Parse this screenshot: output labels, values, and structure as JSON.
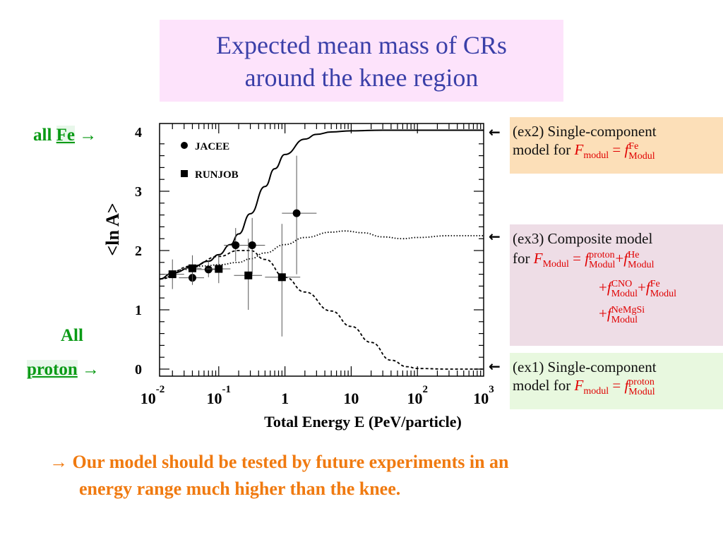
{
  "slide": {
    "title_line1": "Expected mean mass of CRs",
    "title_line2": "around the knee region",
    "label_all_fe_prefix": "all ",
    "label_all_fe_elem": "Fe",
    "label_all_proton_line1": "All",
    "label_all_proton_line2": "proton",
    "arrow_right": "→",
    "arrow_left": "←",
    "conclusion_line1": "→ Our model should be tested by future experiments in an",
    "conclusion_line2": "energy range much higher than the knee.",
    "colors": {
      "title_bg": "#fde3fb",
      "title_text": "#3a3fa8",
      "green": "#0a9a15",
      "orange": "#f07a10",
      "red": "#e00000",
      "ex2_bg": "#fcdfb8",
      "ex3_bg": "#eedde6",
      "ex1_bg": "#e8f8df"
    }
  },
  "ex2": {
    "text1": "(ex2) Single-component",
    "text2": "model for ",
    "F": "F",
    "F_sub": "modul",
    "eq": " = ",
    "f": "f",
    "f_sup": "Fe",
    "f_sub": "Modul"
  },
  "ex3": {
    "text1": "(ex3) Composite model",
    "text2": "for ",
    "F": "F",
    "F_sub": "Modul",
    "eq": " = ",
    "terms": [
      {
        "prefix": "",
        "f": "f",
        "sup": "proton",
        "sub": "Modul"
      },
      {
        "prefix": "+",
        "f": "f",
        "sup": "He",
        "sub": "Modul"
      },
      {
        "prefix": "+",
        "f": "f",
        "sup": "CNO",
        "sub": "Modul"
      },
      {
        "prefix": "+",
        "f": "f",
        "sup": "Fe",
        "sub": "Modul"
      },
      {
        "prefix": "+",
        "f": "f",
        "sup": "NeMgSi",
        "sub": "Modul"
      }
    ]
  },
  "ex1": {
    "text1": "(ex1) Single-component",
    "text2": "model for ",
    "F": "F",
    "F_sub": "modul",
    "eq": " = ",
    "f": "f",
    "f_sup": "proton",
    "f_sub": "Modul"
  },
  "chart_data": {
    "type": "line",
    "title": "",
    "xlabel": "Total Energy E (PeV/particle)",
    "ylabel": "<ln A>",
    "xscale": "log",
    "xlim": [
      0.01,
      1000
    ],
    "ylim": [
      -0.2,
      4.2
    ],
    "x_ticks": [
      {
        "base": "10",
        "exp": "-2",
        "value": 0.01
      },
      {
        "base": "10",
        "exp": "-1",
        "value": 0.1
      },
      {
        "base": "1",
        "exp": "",
        "value": 1
      },
      {
        "base": "10",
        "exp": "",
        "value": 10
      },
      {
        "base": "10",
        "exp": "2",
        "value": 100
      },
      {
        "base": "10",
        "exp": "3",
        "value": 1000
      }
    ],
    "y_ticks": [
      {
        "label": "0",
        "value": 0
      },
      {
        "label": "1",
        "value": 1
      },
      {
        "label": "2",
        "value": 2
      },
      {
        "label": "3",
        "value": 3
      },
      {
        "label": "4",
        "value": 4
      }
    ],
    "legend": [
      "JACEE",
      "RUNJOB"
    ],
    "legend_position": "top-left",
    "series": [
      {
        "name": "JACEE",
        "style": "marker-circle",
        "points": [
          {
            "x": 0.04,
            "y": 1.54,
            "xerr": [
              0.025,
              0.06
            ],
            "yerr": [
              1.42,
              1.66
            ]
          },
          {
            "x": 0.07,
            "y": 1.68,
            "xerr": [
              0.045,
              0.1
            ],
            "yerr": [
              1.55,
              1.82
            ]
          },
          {
            "x": 0.18,
            "y": 2.09,
            "xerr": [
              0.12,
              0.27
            ],
            "yerr": [
              1.82,
              2.38
            ]
          },
          {
            "x": 0.32,
            "y": 2.09,
            "xerr": [
              0.2,
              0.5
            ],
            "yerr": [
              1.6,
              2.55
            ]
          },
          {
            "x": 1.5,
            "y": 2.63,
            "xerr": [
              0.9,
              3.0
            ],
            "yerr": [
              1.6,
              3.6
            ]
          }
        ]
      },
      {
        "name": "RUNJOB",
        "style": "marker-square",
        "points": [
          {
            "x": 0.02,
            "y": 1.6,
            "xerr": [
              0.013,
              0.03
            ],
            "yerr": [
              1.35,
              1.85
            ]
          },
          {
            "x": 0.04,
            "y": 1.7,
            "xerr": [
              0.028,
              0.055
            ],
            "yerr": [
              1.45,
              1.92
            ]
          },
          {
            "x": 0.1,
            "y": 1.69,
            "xerr": [
              0.065,
              0.15
            ],
            "yerr": [
              1.45,
              1.92
            ]
          },
          {
            "x": 0.28,
            "y": 1.58,
            "xerr": [
              0.17,
              0.45
            ],
            "yerr": [
              1.0,
              2.2
            ]
          },
          {
            "x": 0.9,
            "y": 1.55,
            "xerr": [
              0.5,
              1.7
            ],
            "yerr": [
              0.55,
              2.45
            ]
          }
        ]
      },
      {
        "style": "solid",
        "points": [
          [
            0.01,
            1.52
          ],
          [
            0.02,
            1.62
          ],
          [
            0.04,
            1.72
          ],
          [
            0.07,
            1.82
          ],
          [
            0.1,
            1.93
          ],
          [
            0.15,
            2.1
          ],
          [
            0.2,
            2.28
          ],
          [
            0.3,
            2.62
          ],
          [
            0.5,
            3.08
          ],
          [
            0.7,
            3.38
          ],
          [
            1,
            3.62
          ],
          [
            2,
            3.88
          ],
          [
            3,
            3.96
          ],
          [
            5,
            4.0
          ],
          [
            10,
            4.02
          ],
          [
            30,
            4.03
          ],
          [
            100,
            4.03
          ],
          [
            1000,
            4.03
          ]
        ]
      },
      {
        "style": "dotted",
        "points": [
          [
            0.01,
            1.52
          ],
          [
            0.03,
            1.68
          ],
          [
            0.06,
            1.74
          ],
          [
            0.1,
            1.76
          ],
          [
            0.2,
            1.8
          ],
          [
            0.3,
            1.86
          ],
          [
            0.5,
            1.96
          ],
          [
            1,
            2.1
          ],
          [
            2,
            2.22
          ],
          [
            5,
            2.31
          ],
          [
            8,
            2.33
          ],
          [
            15,
            2.3
          ],
          [
            30,
            2.23
          ],
          [
            60,
            2.2
          ],
          [
            100,
            2.22
          ],
          [
            300,
            2.25
          ],
          [
            1000,
            2.25
          ]
        ]
      },
      {
        "style": "dashed",
        "points": [
          [
            0.01,
            1.52
          ],
          [
            0.04,
            1.74
          ],
          [
            0.1,
            1.9
          ],
          [
            0.2,
            2.0
          ],
          [
            0.3,
            2.0
          ],
          [
            0.5,
            1.85
          ],
          [
            1,
            1.55
          ],
          [
            2,
            1.3
          ],
          [
            5,
            0.98
          ],
          [
            10,
            0.72
          ],
          [
            20,
            0.45
          ],
          [
            40,
            0.15
          ],
          [
            70,
            0.04
          ],
          [
            100,
            0.01
          ],
          [
            300,
            0.0
          ],
          [
            1000,
            0.0
          ]
        ]
      }
    ]
  }
}
